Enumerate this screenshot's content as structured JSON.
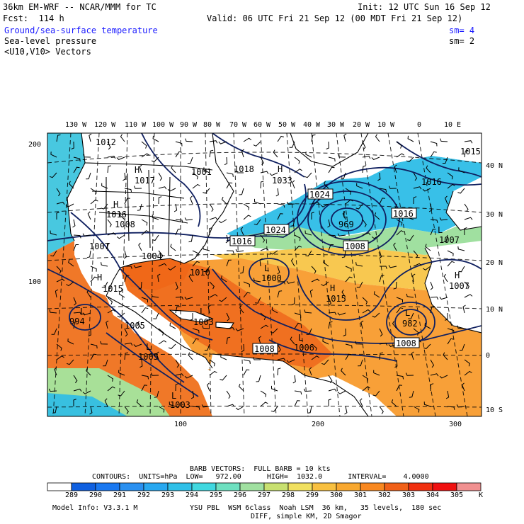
{
  "header": {
    "model": "36km EM-WRF -- NCAR/MMM for TC",
    "init": "Init: 12 UTC Sun 16 Sep 12",
    "fcst": "Fcst:  114 h",
    "valid": "Valid: 06 UTC Fri 21 Sep 12 (00 MDT Fri 21 Sep 12)",
    "fields": [
      {
        "name": "Ground/sea-surface temperature",
        "sm": "sm= 4",
        "color": "#1a1aff"
      },
      {
        "name": "Sea-level pressure",
        "sm": "sm= 2",
        "color": "#000000"
      },
      {
        "name": "<U10,V10> Vectors",
        "sm": "",
        "color": "#000000"
      }
    ]
  },
  "map": {
    "top_lon_labels": [
      "130 W",
      "120 W",
      "110 W",
      "100 W",
      "90 W",
      "80 W",
      "70 W",
      "60 W",
      "50 W",
      "40 W",
      "30 W",
      "20 W",
      "10 W",
      "0",
      "10 E"
    ],
    "right_lat_labels": [
      "40 N",
      "30 N",
      "20 N",
      "10 N",
      "0",
      "10 S"
    ],
    "left_grid_labels": [
      "200",
      "100"
    ],
    "bottom_grid_labels": [
      "100",
      "200",
      "300"
    ],
    "pressure_labels": [
      "1012",
      "1017",
      "1016",
      "1008",
      "1007",
      "1004",
      "1001",
      "1018",
      "1033",
      "1024",
      "1024",
      "1016",
      "1016",
      "969",
      "1008",
      "1016",
      "1015",
      "1007",
      "1010",
      "1000",
      "1015",
      "982",
      "1008",
      "1008",
      "1006",
      "994",
      "1007",
      "1005",
      "1003",
      "1003",
      "1005",
      "1015"
    ],
    "centers": [
      "H",
      "H",
      "H",
      "L",
      "L",
      "L",
      "L",
      "H",
      "L",
      "H",
      "L",
      "H",
      "L",
      "L",
      "L"
    ]
  },
  "footer": {
    "barb": "BARB VECTORS:  FULL BARB = 10 kts",
    "contours": "CONTOURS:  UNITS=hPa  LOW=   972.00      HIGH=  1032.0      INTERVAL=    4.0000",
    "colorbar_values": [
      "289",
      "290",
      "291",
      "292",
      "293",
      "294",
      "295",
      "296",
      "297",
      "298",
      "299",
      "300",
      "301",
      "302",
      "303",
      "304",
      "305"
    ],
    "colorbar_unit": "K",
    "colorbar_colors": [
      "#1060e0",
      "#1a78f0",
      "#2a90f0",
      "#28a8f0",
      "#30c0e8",
      "#40d8e0",
      "#6ee0c0",
      "#a0e0a0",
      "#c8e070",
      "#f0e060",
      "#f8c040",
      "#f8a830",
      "#f88820",
      "#f06018",
      "#f03010",
      "#f01010",
      "#f09090"
    ],
    "model_info": "Model Info: V3.3.1 M",
    "physics": "YSU PBL  WSM 6class  Noah LSM  36 km,   35 levels,  180 sec",
    "diff": "DIFF, simple KM, 2D Smagor"
  }
}
